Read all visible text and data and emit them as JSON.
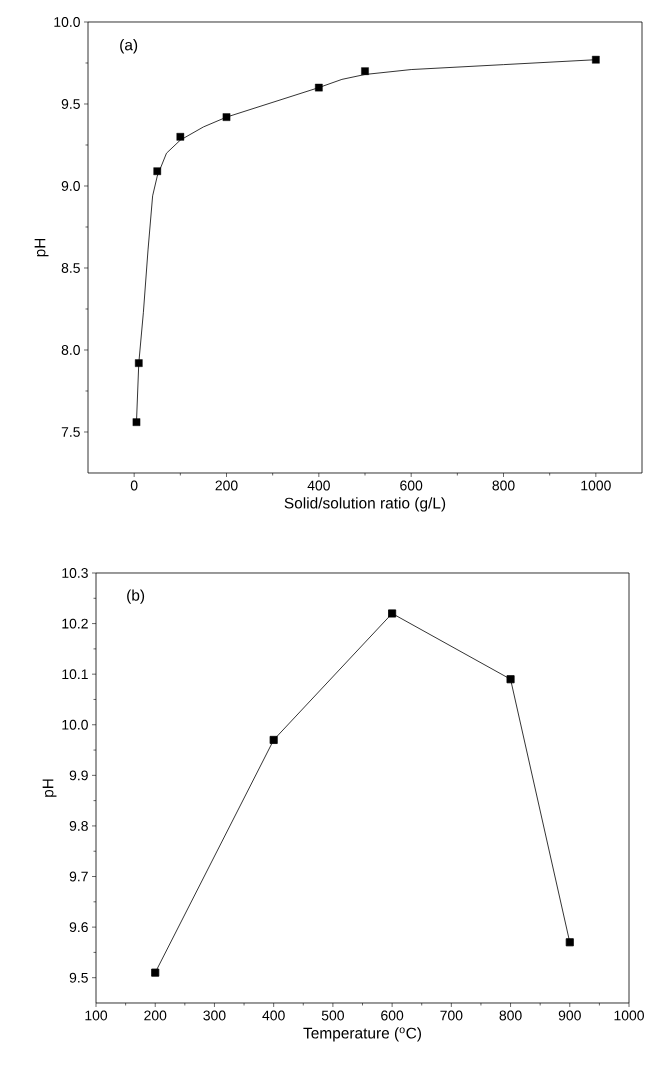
{
  "chart_data": [
    {
      "type": "scatter",
      "xlabel": "Solid/solution ratio (g/L)",
      "ylabel": "pH",
      "annotations": [
        "(a)"
      ],
      "xlim": [
        -100,
        1100
      ],
      "ylim": [
        7.25,
        10.0
      ],
      "xticks": [
        0,
        200,
        400,
        600,
        800,
        1000
      ],
      "yticks": [
        7.5,
        {
          "value": 8.0,
          "label": "8.0"
        },
        8.5,
        {
          "value": 9.0,
          "label": "9.0"
        },
        9.5,
        {
          "value": 10.0,
          "label": "10.0"
        }
      ],
      "marker": "square",
      "series": [
        {
          "color": "#000000",
          "x": [
            5,
            10,
            50,
            100,
            200,
            400,
            500,
            1000
          ],
          "values": [
            7.56,
            7.92,
            9.09,
            9.3,
            9.42,
            9.6,
            9.7,
            9.77
          ]
        },
        {
          "type": "line",
          "marker": "none",
          "color": "#000000",
          "x": [
            5,
            10,
            20,
            30,
            40,
            50,
            70,
            100,
            150,
            200,
            300,
            400,
            450,
            500,
            600,
            800,
            1000
          ],
          "values": [
            7.56,
            7.92,
            8.23,
            8.61,
            8.94,
            9.06,
            9.2,
            9.28,
            9.36,
            9.42,
            9.51,
            9.6,
            9.65,
            9.68,
            9.71,
            9.74,
            9.77
          ]
        }
      ]
    },
    {
      "type": "line",
      "xlabel": "Temperature ($^{o}$C)",
      "ylabel": "pH",
      "annotations": [
        "(b)"
      ],
      "xlim": [
        100,
        1000
      ],
      "ylim": [
        9.45,
        10.3
      ],
      "xticks": [
        100,
        200,
        300,
        400,
        500,
        600,
        700,
        800,
        900,
        1000
      ],
      "yticks": [
        9.5,
        9.6,
        9.7,
        9.8,
        9.9,
        {
          "value": 10.0,
          "label": "10.0"
        },
        10.1,
        10.2,
        10.3
      ],
      "marker": "square",
      "series": [
        {
          "color": "#000000",
          "x": [
            200,
            400,
            600,
            800,
            900
          ],
          "values": [
            9.51,
            9.97,
            10.22,
            10.09,
            9.57
          ]
        }
      ]
    }
  ]
}
